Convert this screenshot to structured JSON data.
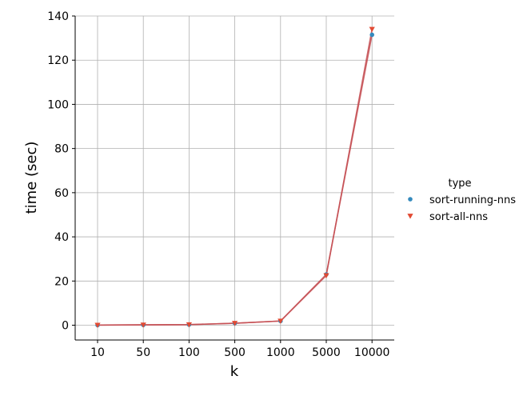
{
  "chart_data": {
    "type": "line",
    "categories": [
      "10",
      "50",
      "100",
      "500",
      "1000",
      "5000",
      "10000"
    ],
    "series": [
      {
        "name": "sort-running-nns",
        "marker": "circle",
        "color": "#348ABD",
        "values": [
          0.05,
          0.15,
          0.25,
          0.9,
          1.9,
          23,
          131.5
        ]
      },
      {
        "name": "sort-all-nns",
        "marker": "triangle-down",
        "color": "#E24A33",
        "values": [
          0.05,
          0.15,
          0.25,
          0.9,
          1.9,
          22.5,
          134
        ]
      }
    ],
    "line_color": "#C44E52",
    "xlabel": "k",
    "ylabel": "time (sec)",
    "yticks": [
      0,
      20,
      40,
      60,
      80,
      100,
      120,
      140
    ],
    "ylim": [
      -6.7,
      140
    ],
    "grid": true,
    "legend": {
      "title": "type",
      "placement": "right"
    }
  }
}
